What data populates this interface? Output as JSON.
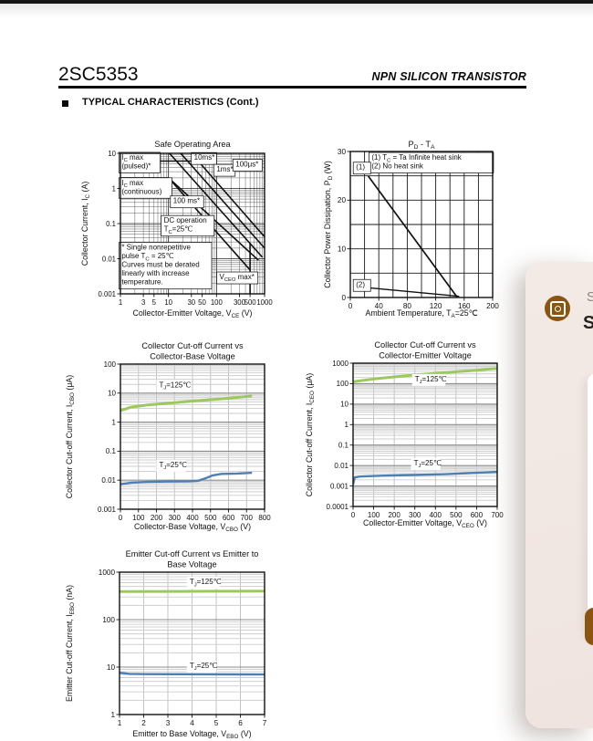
{
  "page": {
    "part_number": "2SC5353",
    "doc_type": "NPN SILICON TRANSISTOR",
    "section_title": "TYPICAL CHARACTERISTICS (Cont.)",
    "top_bar_color": "#161616"
  },
  "overlay": {
    "partial_label": "S",
    "partial_heading": "S",
    "bg_color": "#f3eae6",
    "accent_color": "#8a5510",
    "icon": "app-badge-icon"
  },
  "chart_data": [
    {
      "id": "soa",
      "type": "line",
      "title": "Safe Operating Area",
      "xlabel": "Collector-Emitter Voltage, V~CE~ (V)",
      "ylabel": "Collector Current, I~C~ (A)",
      "xscale": "log",
      "yscale": "log",
      "xlim": [
        1,
        1000
      ],
      "ylim": [
        0.001,
        10
      ],
      "style": "soa",
      "xticks": [
        {
          "v": 1,
          "l": "1"
        },
        {
          "v": 3,
          "l": "3"
        },
        {
          "v": 5,
          "l": "5"
        },
        {
          "v": 10,
          "l": "10"
        },
        {
          "v": 30,
          "l": "30"
        },
        {
          "v": 50,
          "l": "50"
        },
        {
          "v": 100,
          "l": "100"
        },
        {
          "v": 300,
          "l": "300"
        },
        {
          "v": 500,
          "l": "500"
        },
        {
          "v": 1000,
          "l": "1000"
        }
      ],
      "yticks": [
        {
          "v": 10,
          "l": "10"
        },
        {
          "v": 1,
          "l": "1"
        },
        {
          "v": 0.1,
          "l": "0.1"
        },
        {
          "v": 0.01,
          "l": "0.01"
        },
        {
          "v": 0.001,
          "l": "0.001"
        }
      ],
      "series": [
        {
          "name": "ic-max-pulsed",
          "color": "#111111",
          "width": 1.6,
          "points": [
            [
              1,
              6
            ],
            [
              45,
              6
            ]
          ]
        },
        {
          "name": "limit-100us",
          "color": "#111111",
          "width": 1.6,
          "points": [
            [
              30,
              10
            ],
            [
              1000,
              0.042
            ]
          ]
        },
        {
          "name": "limit-1ms",
          "color": "#111111",
          "width": 1.6,
          "points": [
            [
              18,
              10
            ],
            [
              1000,
              0.02
            ]
          ]
        },
        {
          "name": "limit-10ms",
          "color": "#111111",
          "width": 1.6,
          "points": [
            [
              10.5,
              10
            ],
            [
              900,
              0.011
            ]
          ]
        },
        {
          "name": "ic-max-continuous",
          "color": "#111111",
          "width": 1.6,
          "points": [
            [
              1,
              2
            ],
            [
              10,
              2
            ]
          ]
        },
        {
          "name": "limit-100ms",
          "color": "#111111",
          "width": 1.6,
          "points": [
            [
              10,
              2
            ],
            [
              750,
              0.009
            ]
          ]
        },
        {
          "name": "limit-dc",
          "color": "#111111",
          "width": 1.6,
          "points": [
            [
              10,
              2
            ],
            [
              500,
              0.0048
            ]
          ]
        },
        {
          "name": "vceo-max-line",
          "color": "#111111",
          "width": 1.6,
          "points": [
            [
              500,
              0.028
            ],
            [
              500,
              0.001
            ]
          ]
        }
      ],
      "annotations": [
        {
          "lines": [
            "I~C~ max",
            "(pulsed)*"
          ],
          "x": 1.06,
          "y": 6.6,
          "boxed": true
        },
        {
          "lines": [
            "I~C~ max",
            "(continuous)"
          ],
          "x": 1.06,
          "y": 1.25,
          "boxed": true
        },
        {
          "lines": [
            "100 ms*"
          ],
          "x": 12.5,
          "y": 0.38,
          "boxed": true
        },
        {
          "lines": [
            "10ms*"
          ],
          "x": 34,
          "y": 6.5,
          "boxed": true
        },
        {
          "lines": [
            "1ms*"
          ],
          "x": 100,
          "y": 3,
          "boxed": true
        },
        {
          "lines": [
            "100μs*"
          ],
          "x": 250,
          "y": 4.2,
          "boxed": true
        },
        {
          "lines": [
            "DC operation",
            "T~C~=25℃"
          ],
          "x": 8,
          "y": 0.105,
          "boxed": true
        },
        {
          "lines": [
            "V~CEO~ max*"
          ],
          "x": 115,
          "y": 0.0026,
          "boxed": true
        },
        {
          "lines": [
            "* Single nonrepetitive",
            "pulse T~C~ = 25℃",
            "Curves must be derated",
            "linearly with increase",
            "temperature."
          ],
          "x": 1.06,
          "y": 0.018,
          "boxed": true
        }
      ]
    },
    {
      "id": "pdta",
      "type": "line",
      "title": "P~D~ - T~A~",
      "xlabel": "Ambient Temperature, T~A~=25℃",
      "ylabel": "Collector Power Dissipation, P~D~ (W)",
      "xscale": "linear",
      "yscale": "linear",
      "xlim": [
        0,
        200
      ],
      "ylim": [
        0,
        30
      ],
      "xgrid": 20,
      "ygrid": 5,
      "style": "pdta",
      "xticks": [
        {
          "v": 0,
          "l": "0"
        },
        {
          "v": 40,
          "l": "40"
        },
        {
          "v": 80,
          "l": "80"
        },
        {
          "v": 120,
          "l": "120"
        },
        {
          "v": 160,
          "l": "160"
        },
        {
          "v": 200,
          "l": "200"
        }
      ],
      "yticks": [
        {
          "v": 0,
          "l": "0"
        },
        {
          "v": 10,
          "l": "10"
        },
        {
          "v": 20,
          "l": "20"
        },
        {
          "v": 30,
          "l": "30"
        }
      ],
      "series": [
        {
          "name": "infinite-heat-sink",
          "color": "#111111",
          "width": 1.7,
          "points": [
            [
              25,
              25
            ],
            [
              150,
              0.1
            ]
          ]
        },
        {
          "name": "no-heat-sink",
          "color": "#111111",
          "width": 1.4,
          "points": [
            [
              25,
              2
            ],
            [
              153,
              0.25
            ]
          ]
        }
      ],
      "annotations": [
        {
          "lines": [
            "(1) T~C~ = Ta Infinite heat sink",
            "(2) No heat sink"
          ],
          "x": 30,
          "y": 28.3,
          "boxed": true
        },
        {
          "lines": [
            "(1)"
          ],
          "x": 8,
          "y": 26.3,
          "boxed": true
        },
        {
          "lines": [
            "(2)"
          ],
          "x": 8,
          "y": 2.2,
          "boxed": true
        }
      ]
    },
    {
      "id": "cbo",
      "type": "line",
      "title_lines": [
        "Collector Cut-off Current vs",
        "Collector-Base Voltage"
      ],
      "xlabel": "Collector-Base Voltage, V~CBO~ (V)",
      "ylabel": "Collector Cut-off Current, I~CBO~ (μA)",
      "xscale": "linear",
      "yscale": "log",
      "xlim": [
        0,
        800
      ],
      "ylim": [
        0.001,
        100
      ],
      "xgrid": 100,
      "style": "banded",
      "xticks": [
        {
          "v": 0,
          "l": "0"
        },
        {
          "v": 100,
          "l": "100"
        },
        {
          "v": 200,
          "l": "200"
        },
        {
          "v": 300,
          "l": "300"
        },
        {
          "v": 400,
          "l": "400"
        },
        {
          "v": 500,
          "l": "500"
        },
        {
          "v": 600,
          "l": "600"
        },
        {
          "v": 700,
          "l": "700"
        },
        {
          "v": 800,
          "l": "800"
        }
      ],
      "yticks": [
        {
          "v": 100,
          "l": "100"
        },
        {
          "v": 10,
          "l": "10"
        },
        {
          "v": 1,
          "l": "1"
        },
        {
          "v": 0.1,
          "l": "0.1"
        },
        {
          "v": 0.01,
          "l": "0.01"
        },
        {
          "v": 0.001,
          "l": "0.001"
        }
      ],
      "series": [
        {
          "name": "tj-125c",
          "color": "#9cc95e",
          "width": 3,
          "points": [
            [
              0,
              2.5
            ],
            [
              60,
              3.3
            ],
            [
              150,
              3.9
            ],
            [
              250,
              4.4
            ],
            [
              350,
              5.0
            ],
            [
              450,
              5.6
            ],
            [
              550,
              6.3
            ],
            [
              650,
              7.1
            ],
            [
              730,
              8
            ]
          ]
        },
        {
          "name": "tj-25c",
          "color": "#4d7fb5",
          "width": 2.4,
          "points": [
            [
              0,
              0.0072
            ],
            [
              60,
              0.0082
            ],
            [
              150,
              0.0087
            ],
            [
              250,
              0.009
            ],
            [
              380,
              0.0092
            ],
            [
              430,
              0.0095
            ],
            [
              470,
              0.0115
            ],
            [
              510,
              0.0145
            ],
            [
              560,
              0.0165
            ],
            [
              650,
              0.017
            ],
            [
              730,
              0.018
            ]
          ]
        }
      ],
      "annotations": [
        {
          "lines": [
            "T~J~=125℃"
          ],
          "x": 215,
          "y": 16,
          "bg": true
        },
        {
          "lines": [
            "T~J~=25℃"
          ],
          "x": 215,
          "y": 0.028,
          "bg": true
        }
      ]
    },
    {
      "id": "ceo",
      "type": "line",
      "title_lines": [
        "Collector Cut-off Current vs",
        "Collector-Emitter Voltage"
      ],
      "xlabel": "Collector-Emitter Voltage, V~CEO~ (V)",
      "ylabel": "Collector Cut-off Current, I~CEO~ (μA)",
      "xscale": "linear",
      "yscale": "log",
      "xlim": [
        0,
        700
      ],
      "ylim": [
        0.0001,
        1000
      ],
      "xgrid": 100,
      "style": "banded",
      "xticks": [
        {
          "v": 0,
          "l": "0"
        },
        {
          "v": 100,
          "l": "100"
        },
        {
          "v": 200,
          "l": "200"
        },
        {
          "v": 300,
          "l": "300"
        },
        {
          "v": 400,
          "l": "400"
        },
        {
          "v": 500,
          "l": "500"
        },
        {
          "v": 600,
          "l": "600"
        },
        {
          "v": 700,
          "l": "700"
        }
      ],
      "yticks": [
        {
          "v": 1000,
          "l": "1000"
        },
        {
          "v": 100,
          "l": "100"
        },
        {
          "v": 10,
          "l": "10"
        },
        {
          "v": 1,
          "l": "1"
        },
        {
          "v": 0.1,
          "l": "0.1"
        },
        {
          "v": 0.01,
          "l": "0.01"
        },
        {
          "v": 0.001,
          "l": "0.001"
        },
        {
          "v": 0.0001,
          "l": "0.0001"
        }
      ],
      "series": [
        {
          "name": "tj-125c",
          "color": "#9cc95e",
          "width": 3,
          "points": [
            [
              0,
              125
            ],
            [
              100,
              170
            ],
            [
              200,
              215
            ],
            [
              300,
              265
            ],
            [
              400,
              320
            ],
            [
              500,
              380
            ],
            [
              600,
              450
            ],
            [
              700,
              560
            ]
          ]
        },
        {
          "name": "tj-25c",
          "color": "#4d7fb5",
          "width": 2.4,
          "points": [
            [
              0,
              0.0012
            ],
            [
              8,
              0.0026
            ],
            [
              30,
              0.0029
            ],
            [
              150,
              0.0032
            ],
            [
              300,
              0.0035
            ],
            [
              450,
              0.0038
            ],
            [
              600,
              0.0044
            ],
            [
              700,
              0.0049
            ]
          ]
        }
      ],
      "annotations": [
        {
          "lines": [
            "T~J~=125℃"
          ],
          "x": 300,
          "y": 130,
          "bg": true
        },
        {
          "lines": [
            "T~J~=25℃"
          ],
          "x": 295,
          "y": 0.0102,
          "bg": true
        }
      ]
    },
    {
      "id": "ebo",
      "type": "line",
      "title_lines": [
        "Emitter Cut-off Current vs Emitter to",
        "Base Voltage"
      ],
      "xlabel": "Emitter to Base Voltage, V~EBO~ (V)",
      "ylabel": "Emitter Cut-off Current, I~EBO~ (nA)",
      "xscale": "linear",
      "yscale": "log",
      "xlim": [
        1,
        7
      ],
      "ylim": [
        1,
        1000
      ],
      "xgrid": 1,
      "style": "banded",
      "xticks": [
        {
          "v": 1,
          "l": "1"
        },
        {
          "v": 2,
          "l": "2"
        },
        {
          "v": 3,
          "l": "3"
        },
        {
          "v": 4,
          "l": "4"
        },
        {
          "v": 5,
          "l": "5"
        },
        {
          "v": 6,
          "l": "6"
        },
        {
          "v": 7,
          "l": "7"
        }
      ],
      "yticks": [
        {
          "v": 1000,
          "l": "1000"
        },
        {
          "v": 100,
          "l": "100"
        },
        {
          "v": 10,
          "l": "10"
        },
        {
          "v": 1,
          "l": "1"
        }
      ],
      "series": [
        {
          "name": "tj-125c",
          "color": "#9cc95e",
          "width": 3,
          "points": [
            [
              1,
              390
            ],
            [
              3,
              392
            ],
            [
              5,
              396
            ],
            [
              7,
              400
            ]
          ]
        },
        {
          "name": "tj-25c",
          "color": "#4d7fb5",
          "width": 2.4,
          "points": [
            [
              1,
              7.6
            ],
            [
              1.4,
              7.2
            ],
            [
              2,
              7.1
            ],
            [
              7,
              7.0
            ]
          ]
        }
      ],
      "annotations": [
        {
          "lines": [
            "T~J~=125℃"
          ],
          "x": 3.9,
          "y": 560,
          "bg": true
        },
        {
          "lines": [
            "T~J~=25℃"
          ],
          "x": 3.9,
          "y": 9.6,
          "bg": true
        }
      ]
    }
  ]
}
